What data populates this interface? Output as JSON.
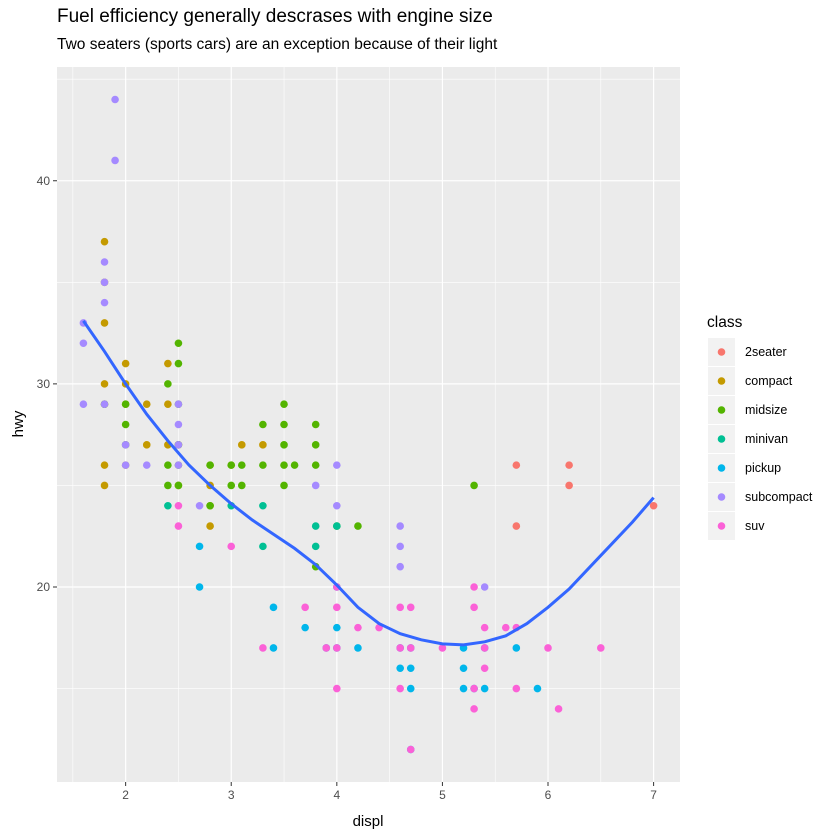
{
  "chart_data": {
    "type": "scatter",
    "title": "Fuel efficiency generally descrases with engine size",
    "subtitle": "Two seaters (sports cars) are an exception because of their light",
    "xlabel": "displ",
    "ylabel": "hwy",
    "xlim": [
      1.35,
      7.25
    ],
    "ylim": [
      10.4,
      45.6
    ],
    "xticks": [
      2,
      3,
      4,
      5,
      6,
      7
    ],
    "yticks": [
      20,
      30,
      40
    ],
    "grid": true,
    "background": "#ebebeb",
    "legend": {
      "title": "class",
      "position": "right",
      "entries": [
        "2seater",
        "compact",
        "midsize",
        "minivan",
        "pickup",
        "subcompact",
        "suv"
      ]
    },
    "series": [
      {
        "name": "2seater",
        "color": "#f8766d",
        "points": [
          [
            5.7,
            26
          ],
          [
            5.7,
            23
          ],
          [
            6.2,
            26
          ],
          [
            6.2,
            25
          ],
          [
            7.0,
            24
          ]
        ]
      },
      {
        "name": "compact",
        "color": "#c49a00",
        "points": [
          [
            1.8,
            37
          ],
          [
            1.8,
            35
          ],
          [
            1.8,
            33
          ],
          [
            1.8,
            30
          ],
          [
            1.8,
            29
          ],
          [
            1.8,
            26
          ],
          [
            1.8,
            25
          ],
          [
            2.0,
            31
          ],
          [
            2.0,
            30
          ],
          [
            2.0,
            29
          ],
          [
            2.0,
            26
          ],
          [
            2.2,
            29
          ],
          [
            2.2,
            27
          ],
          [
            2.4,
            31
          ],
          [
            2.4,
            29
          ],
          [
            2.4,
            27
          ],
          [
            2.5,
            27
          ],
          [
            2.5,
            25
          ],
          [
            2.8,
            26
          ],
          [
            2.8,
            25
          ],
          [
            2.8,
            24
          ],
          [
            2.8,
            23
          ],
          [
            3.0,
            26
          ],
          [
            3.1,
            27
          ],
          [
            3.3,
            27
          ]
        ]
      },
      {
        "name": "midsize",
        "color": "#53b400",
        "points": [
          [
            1.8,
            29
          ],
          [
            2.0,
            29
          ],
          [
            2.0,
            28
          ],
          [
            2.0,
            27
          ],
          [
            2.4,
            30
          ],
          [
            2.4,
            26
          ],
          [
            2.4,
            25
          ],
          [
            2.5,
            32
          ],
          [
            2.5,
            31
          ],
          [
            2.5,
            29
          ],
          [
            2.5,
            27
          ],
          [
            2.5,
            26
          ],
          [
            2.5,
            25
          ],
          [
            2.8,
            26
          ],
          [
            2.8,
            24
          ],
          [
            3.0,
            25
          ],
          [
            3.0,
            26
          ],
          [
            3.1,
            26
          ],
          [
            3.1,
            25
          ],
          [
            3.3,
            28
          ],
          [
            3.3,
            26
          ],
          [
            3.5,
            29
          ],
          [
            3.5,
            28
          ],
          [
            3.5,
            27
          ],
          [
            3.5,
            26
          ],
          [
            3.5,
            25
          ],
          [
            3.6,
            26
          ],
          [
            3.8,
            28
          ],
          [
            3.8,
            27
          ],
          [
            3.8,
            26
          ],
          [
            3.8,
            21
          ],
          [
            4.0,
            23
          ],
          [
            4.2,
            23
          ],
          [
            5.3,
            25
          ]
        ]
      },
      {
        "name": "minivan",
        "color": "#00c094",
        "points": [
          [
            2.4,
            24
          ],
          [
            3.0,
            24
          ],
          [
            3.3,
            24
          ],
          [
            3.3,
            22
          ],
          [
            3.8,
            23
          ],
          [
            3.8,
            22
          ],
          [
            4.0,
            23
          ]
        ]
      },
      {
        "name": "pickup",
        "color": "#00b6eb",
        "points": [
          [
            2.7,
            22
          ],
          [
            2.7,
            20
          ],
          [
            3.4,
            19
          ],
          [
            3.4,
            17
          ],
          [
            3.7,
            18
          ],
          [
            3.9,
            17
          ],
          [
            4.0,
            20
          ],
          [
            4.0,
            18
          ],
          [
            4.0,
            17
          ],
          [
            4.2,
            17
          ],
          [
            4.6,
            17
          ],
          [
            4.6,
            16
          ],
          [
            4.7,
            17
          ],
          [
            4.7,
            16
          ],
          [
            4.7,
            15
          ],
          [
            4.7,
            12
          ],
          [
            5.2,
            17
          ],
          [
            5.2,
            16
          ],
          [
            5.2,
            15
          ],
          [
            5.3,
            15
          ],
          [
            5.4,
            17
          ],
          [
            5.4,
            15
          ],
          [
            5.7,
            17
          ],
          [
            5.9,
            15
          ]
        ]
      },
      {
        "name": "subcompact",
        "color": "#a58aff",
        "points": [
          [
            1.6,
            33
          ],
          [
            1.6,
            32
          ],
          [
            1.6,
            29
          ],
          [
            1.8,
            36
          ],
          [
            1.8,
            35
          ],
          [
            1.8,
            34
          ],
          [
            1.8,
            29
          ],
          [
            1.9,
            44
          ],
          [
            1.9,
            41
          ],
          [
            2.0,
            27
          ],
          [
            2.0,
            26
          ],
          [
            2.2,
            26
          ],
          [
            2.5,
            29
          ],
          [
            2.5,
            28
          ],
          [
            2.5,
            27
          ],
          [
            2.5,
            26
          ],
          [
            2.7,
            24
          ],
          [
            3.8,
            25
          ],
          [
            4.0,
            26
          ],
          [
            4.0,
            24
          ],
          [
            4.6,
            23
          ],
          [
            4.6,
            22
          ],
          [
            4.6,
            21
          ],
          [
            5.4,
            20
          ]
        ]
      },
      {
        "name": "suv",
        "color": "#fb61d7",
        "points": [
          [
            2.5,
            24
          ],
          [
            2.5,
            23
          ],
          [
            3.0,
            22
          ],
          [
            3.3,
            17
          ],
          [
            3.7,
            19
          ],
          [
            3.9,
            17
          ],
          [
            4.0,
            20
          ],
          [
            4.0,
            19
          ],
          [
            4.0,
            17
          ],
          [
            4.0,
            15
          ],
          [
            4.2,
            18
          ],
          [
            4.4,
            18
          ],
          [
            4.6,
            19
          ],
          [
            4.6,
            17
          ],
          [
            4.6,
            15
          ],
          [
            4.7,
            19
          ],
          [
            4.7,
            17
          ],
          [
            4.7,
            12
          ],
          [
            5.0,
            17
          ],
          [
            5.3,
            20
          ],
          [
            5.3,
            19
          ],
          [
            5.3,
            15
          ],
          [
            5.3,
            14
          ],
          [
            5.4,
            18
          ],
          [
            5.4,
            17
          ],
          [
            5.4,
            16
          ],
          [
            5.6,
            18
          ],
          [
            5.7,
            18
          ],
          [
            5.7,
            15
          ],
          [
            6.0,
            17
          ],
          [
            6.1,
            14
          ],
          [
            6.5,
            17
          ]
        ]
      }
    ],
    "smooth": {
      "color": "#3366ff",
      "points": [
        [
          1.6,
          33.1
        ],
        [
          1.8,
          31.6
        ],
        [
          2.0,
          30.0
        ],
        [
          2.2,
          28.5
        ],
        [
          2.4,
          27.2
        ],
        [
          2.6,
          26.0
        ],
        [
          2.8,
          25.0
        ],
        [
          3.0,
          24.1
        ],
        [
          3.2,
          23.3
        ],
        [
          3.4,
          22.6
        ],
        [
          3.6,
          21.9
        ],
        [
          3.8,
          21.1
        ],
        [
          4.0,
          20.1
        ],
        [
          4.2,
          19.0
        ],
        [
          4.4,
          18.2
        ],
        [
          4.6,
          17.7
        ],
        [
          4.8,
          17.4
        ],
        [
          5.0,
          17.2
        ],
        [
          5.2,
          17.15
        ],
        [
          5.4,
          17.3
        ],
        [
          5.6,
          17.6
        ],
        [
          5.8,
          18.2
        ],
        [
          6.0,
          19.0
        ],
        [
          6.2,
          19.9
        ],
        [
          6.4,
          21.0
        ],
        [
          6.6,
          22.1
        ],
        [
          6.8,
          23.2
        ],
        [
          7.0,
          24.4
        ]
      ]
    }
  }
}
